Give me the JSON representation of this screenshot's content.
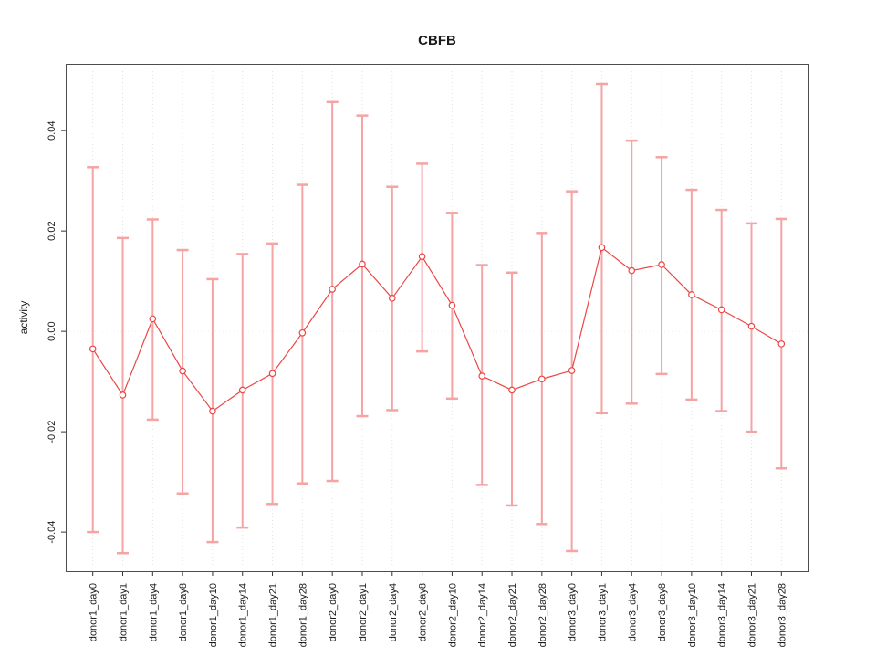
{
  "title": "CBFB",
  "chart_data": {
    "type": "line",
    "subtype": "points-with-error-bars",
    "title": "CBFB",
    "xlabel": "",
    "ylabel": "activity",
    "ylim": [
      -0.0478,
      0.0533
    ],
    "grid": "vertical dotted gridline at each category; dotted horizontal line at y=0",
    "legend": "none",
    "yticks": [
      {
        "label": "0.04",
        "value": 0.04
      },
      {
        "label": "0.02",
        "value": 0.02
      },
      {
        "label": "0.00",
        "value": 0.0
      },
      {
        "label": "-0.02",
        "value": -0.02
      },
      {
        "label": "-0.04",
        "value": -0.04
      }
    ],
    "categories": [
      "donor1_day0",
      "donor1_day1",
      "donor1_day4",
      "donor1_day8",
      "donor1_day10",
      "donor1_day14",
      "donor1_day21",
      "donor1_day28",
      "donor2_day0",
      "donor2_day1",
      "donor2_day4",
      "donor2_day8",
      "donor2_day10",
      "donor2_day14",
      "donor2_day21",
      "donor2_day28",
      "donor3_day0",
      "donor3_day1",
      "donor3_day4",
      "donor3_day8",
      "donor3_day10",
      "donor3_day14",
      "donor3_day21",
      "donor3_day28"
    ],
    "series": [
      {
        "name": "activity",
        "values": [
          -0.0035,
          -0.0127,
          0.0025,
          -0.0079,
          -0.0159,
          -0.0117,
          -0.0084,
          -0.0003,
          0.0084,
          0.0134,
          0.0066,
          0.0149,
          0.0052,
          -0.0089,
          -0.0117,
          -0.0095,
          -0.0078,
          0.0167,
          0.0121,
          0.0133,
          0.0073,
          0.0043,
          0.001,
          -0.0025
        ],
        "upper": [
          0.0327,
          0.0186,
          0.0223,
          0.0162,
          0.0104,
          0.0154,
          0.0175,
          0.0292,
          0.0457,
          0.043,
          0.0288,
          0.0334,
          0.0236,
          0.0132,
          0.0117,
          0.0196,
          0.0279,
          0.0493,
          0.038,
          0.0347,
          0.0282,
          0.0242,
          0.0215,
          0.0224
        ],
        "lower": [
          -0.04,
          -0.0442,
          -0.0176,
          -0.0323,
          -0.042,
          -0.0391,
          -0.0344,
          -0.0303,
          -0.0298,
          -0.0169,
          -0.0157,
          -0.004,
          -0.0134,
          -0.0306,
          -0.0347,
          -0.0384,
          -0.0438,
          -0.0163,
          -0.0144,
          -0.0085,
          -0.0136,
          -0.0159,
          -0.02,
          -0.0273
        ]
      }
    ],
    "colors": {
      "point_and_line": "#ed4545",
      "error_bar": "#f5a3a3",
      "gridline": "#e1e1e1",
      "zero_line": "#ececec",
      "axis_box": "#4d4d4d",
      "tick": "#333333",
      "background": "#ffffff"
    }
  }
}
